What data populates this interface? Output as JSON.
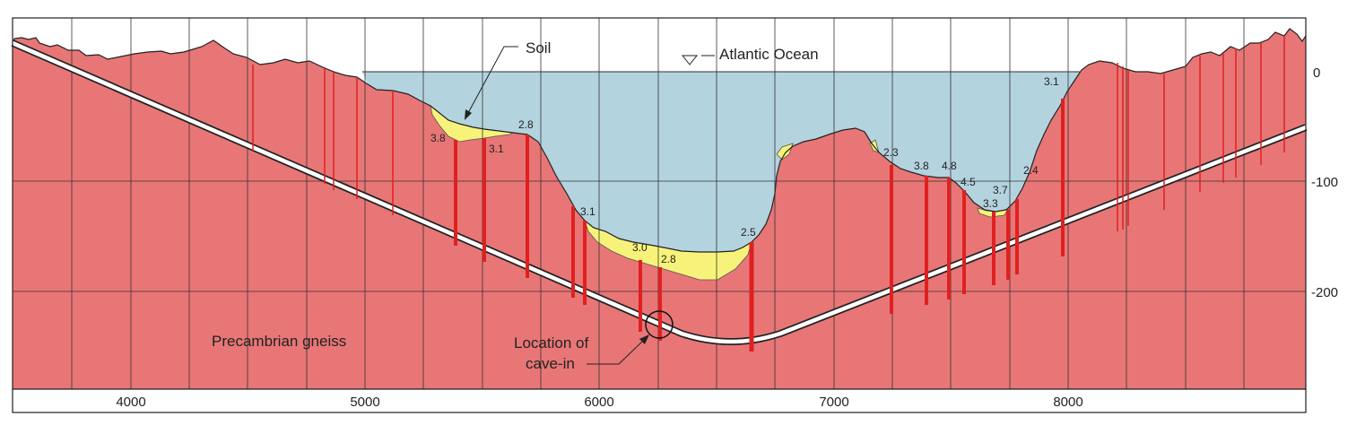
{
  "labels": {
    "soil": "Soil",
    "ocean": "Atlantic Ocean",
    "rock": "Precambrian gneiss",
    "cave_in_line1": "Location of",
    "cave_in_line2": "cave-in"
  },
  "x_axis_ticks": [
    "4000",
    "5000",
    "6000",
    "7000",
    "8000"
  ],
  "y_axis_ticks": [
    "0",
    "-100",
    "-200"
  ],
  "rqd_values": [
    "3.8",
    "3.1",
    "2.8",
    "3.1",
    "3.0",
    "2.8",
    "2.5",
    "2.3",
    "3.8",
    "4.8",
    "4.5",
    "3.7",
    "3.3",
    "2.4",
    "3.1"
  ],
  "colors": {
    "rock": "#e87676",
    "water": "#b3d3df",
    "soil": "#f7f37a",
    "borehole": "#e02020",
    "outline": "#222222"
  }
}
